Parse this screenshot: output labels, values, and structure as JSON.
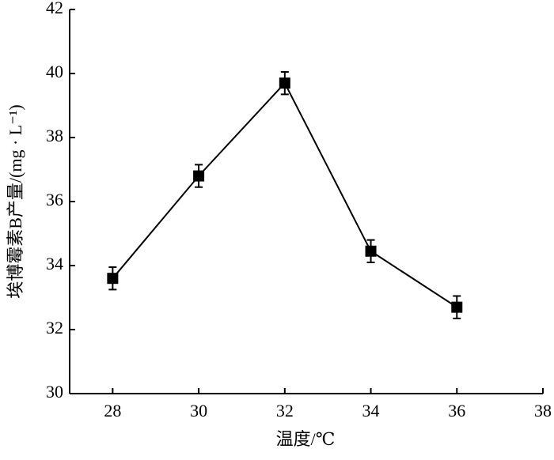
{
  "chart_data": {
    "type": "line",
    "xlabel": "温度/℃",
    "ylabel": "埃博霉素B产量/(mg · L⁻¹)",
    "x": [
      28,
      30,
      32,
      34,
      36
    ],
    "series": [
      {
        "color": "#000000",
        "values": [
          33.6,
          36.8,
          39.7,
          34.45,
          32.7
        ],
        "errors": [
          0.35,
          0.35,
          0.35,
          0.35,
          0.35
        ]
      }
    ],
    "xlim": [
      27,
      38
    ],
    "xticks": [
      28,
      30,
      32,
      34,
      36,
      38
    ],
    "ylim": [
      30,
      42
    ],
    "yticks": [
      30,
      32,
      34,
      36,
      38,
      40,
      42
    ]
  }
}
